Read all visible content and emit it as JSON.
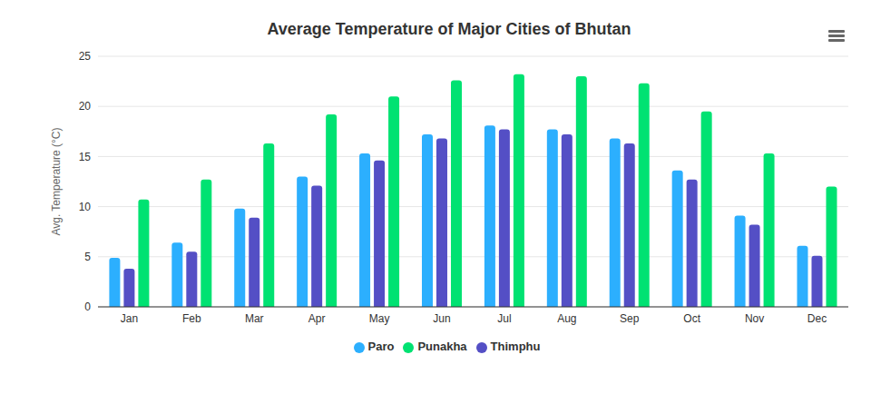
{
  "chart_data": {
    "type": "bar",
    "title": "Average Temperature of Major Cities of Bhutan",
    "y_label": "Avg. Temperature (°C)",
    "categories": [
      "Jan",
      "Feb",
      "Mar",
      "Apr",
      "May",
      "Jun",
      "Jul",
      "Aug",
      "Sep",
      "Oct",
      "Nov",
      "Dec"
    ],
    "series": [
      {
        "name": "Paro",
        "color": "#2caffe",
        "values": [
          4.9,
          6.4,
          9.8,
          13.0,
          15.3,
          17.2,
          18.1,
          17.7,
          16.8,
          13.6,
          9.1,
          6.1
        ]
      },
      {
        "name": "Thimphu",
        "color": "#544fc5",
        "values": [
          3.8,
          5.5,
          8.9,
          12.1,
          14.6,
          16.8,
          17.7,
          17.2,
          16.3,
          12.7,
          8.2,
          5.1
        ]
      },
      {
        "name": "Punakha",
        "color": "#00e272",
        "values": [
          10.7,
          12.7,
          16.3,
          19.2,
          21.0,
          22.6,
          23.2,
          23.0,
          22.3,
          19.5,
          15.3,
          12.0
        ]
      }
    ],
    "ylim": [
      0,
      25
    ],
    "yticks": [
      0,
      5,
      10,
      15,
      20,
      25
    ],
    "grid": true,
    "legend": "bottom"
  }
}
